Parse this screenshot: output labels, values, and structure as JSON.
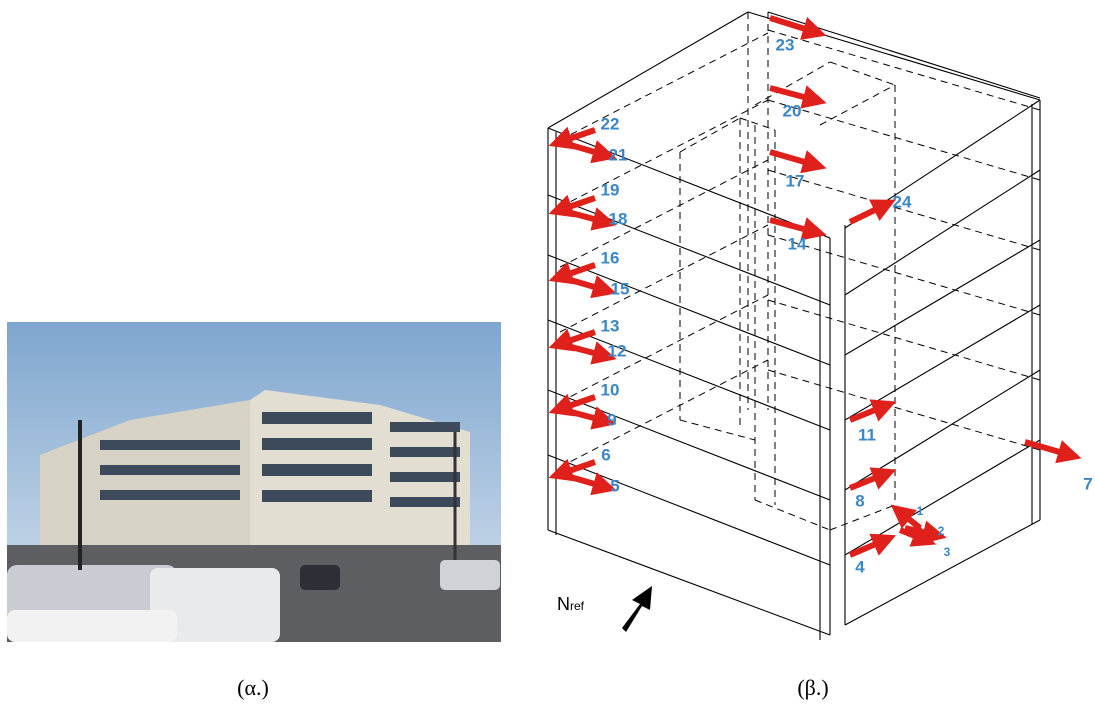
{
  "captions": {
    "photo": "(α.)",
    "diagram": "(β.)"
  },
  "north": {
    "label": "N",
    "subscript": "ref"
  },
  "sensors": [
    "1",
    "2",
    "3",
    "4",
    "5",
    "6",
    "7",
    "8",
    "9",
    "10",
    "11",
    "12",
    "13",
    "14",
    "15",
    "16",
    "17",
    "18",
    "19",
    "20",
    "21",
    "22",
    "23",
    "24"
  ]
}
